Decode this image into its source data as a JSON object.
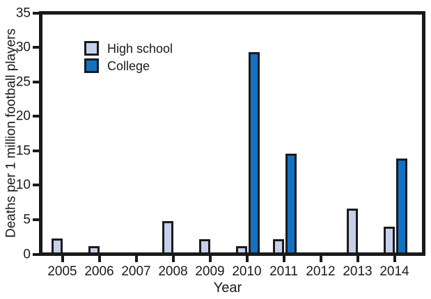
{
  "chart_data": {
    "type": "bar",
    "title": "",
    "categories": [
      "2005",
      "2006",
      "2007",
      "2008",
      "2009",
      "2010",
      "2011",
      "2012",
      "2013",
      "2014"
    ],
    "series": [
      {
        "name": "High school",
        "color": "#c6d0ea",
        "values": [
          2.0,
          0.9,
          0,
          4.6,
          1.9,
          0.9,
          1.9,
          0,
          6.4,
          3.8
        ]
      },
      {
        "name": "College",
        "color": "#1371c3",
        "values": [
          0,
          0,
          0,
          0,
          0,
          29.5,
          14.5,
          0,
          0,
          13.8
        ]
      }
    ],
    "xlabel": "Year",
    "ylabel": "Deaths per 1 million football players",
    "ylim": [
      0,
      35
    ],
    "y_ticks": [
      0,
      5,
      10,
      15,
      20,
      25,
      30,
      35
    ],
    "grid": false,
    "legend_position": "upper-left-inside",
    "axis_color": "#1a1a1a",
    "background_color": "#ffffff"
  }
}
